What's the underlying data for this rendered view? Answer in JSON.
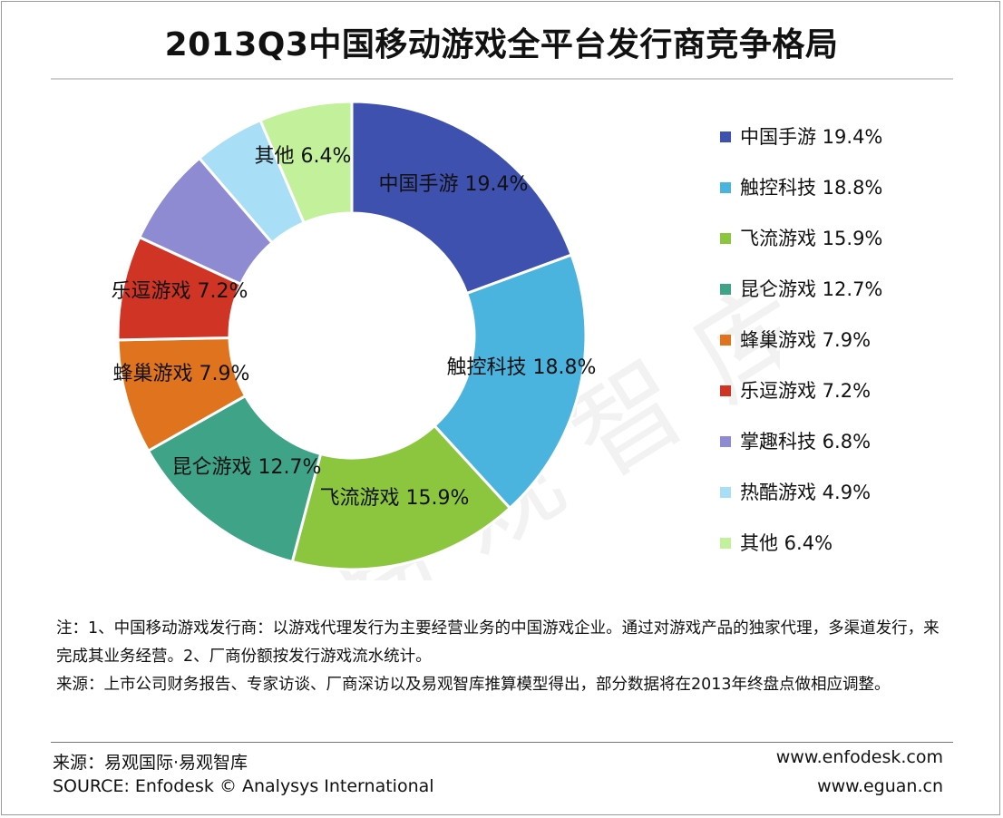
{
  "title": "2013Q3中国移动游戏全平台发行商竞争格局",
  "chart_data": {
    "type": "pie",
    "subtype": "donut",
    "title": "2013Q3中国移动游戏全平台发行商竞争格局",
    "legend_position": "right",
    "slices": [
      {
        "name": "中国手游",
        "value": 19.4,
        "display": "19.4%",
        "color": "#3F51AF"
      },
      {
        "name": "触控科技",
        "value": 18.8,
        "display": "18.8%",
        "color": "#4AB3DE"
      },
      {
        "name": "飞流游戏",
        "value": 15.9,
        "display": "15.9%",
        "color": "#8CC63F"
      },
      {
        "name": "昆仑游戏",
        "value": 12.7,
        "display": "12.7%",
        "color": "#3FA387"
      },
      {
        "name": "蜂巢游戏",
        "value": 7.9,
        "display": "7.9%",
        "color": "#E0741E"
      },
      {
        "name": "乐逗游戏",
        "value": 7.2,
        "display": "7.2%",
        "color": "#CF3425"
      },
      {
        "name": "掌趣科技",
        "value": 6.8,
        "display": "6.8%",
        "color": "#8E8BD2"
      },
      {
        "name": "热酷游戏",
        "value": 4.9,
        "display": "4.9%",
        "color": "#A8DEF6"
      },
      {
        "name": "其他",
        "value": 6.4,
        "display": "6.4%",
        "color": "#C3F09A"
      }
    ],
    "visible_slice_labels": [
      "中国手游",
      "触控科技",
      "飞流游戏",
      "昆仑游戏",
      "蜂巢游戏",
      "乐逗游戏",
      "其他"
    ]
  },
  "watermark": "易观智库",
  "notes": {
    "note": "注：1、中国移动游戏发行商：以游戏代理发行为主要经营业务的中国游戏企业。通过对游戏产品的独家代理，多渠道发行，来完成其业务经营。2、厂商份额按发行游戏流水统计。",
    "source": "来源：上市公司财务报告、专家访谈、厂商深访以及易观智库推算模型得出，部分数据将在2013年终盘点做相应调整。"
  },
  "footer": {
    "source_cn": "来源：易观国际·易观智库",
    "source_en": "SOURCE: Enfodesk © Analysys International",
    "url1": "www.enfodesk.com",
    "url2": "www.eguan.cn"
  }
}
